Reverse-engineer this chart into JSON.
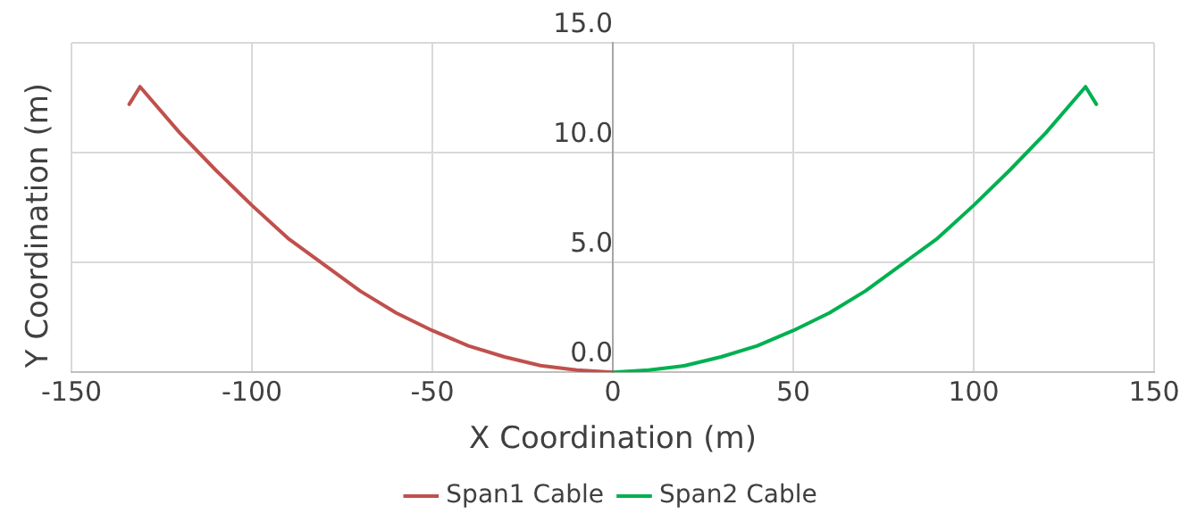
{
  "chart_data": {
    "type": "line",
    "xlabel": "X Coordination (m)",
    "ylabel": "Y Coordination (m)",
    "xlim": [
      -150,
      150
    ],
    "xticks": [
      -150,
      -100,
      -50,
      0,
      50,
      100,
      150
    ],
    "ylim": [
      0,
      15
    ],
    "yticks": [
      {
        "value": 0,
        "label": "0.0"
      },
      {
        "value": 5,
        "label": "5.0"
      },
      {
        "value": 10,
        "label": "10.0"
      },
      {
        "value": 15,
        "label": "15.0"
      }
    ],
    "grid": true,
    "legend": "bottom",
    "marker": "none",
    "line_style": "solid",
    "series": [
      {
        "name": "Span1 Cable",
        "color": "#c0504d",
        "x": [
          -134,
          -131,
          -120,
          -110,
          -100,
          -90,
          -80,
          -70,
          -60,
          -50,
          -40,
          -30,
          -20,
          -10,
          0
        ],
        "values": [
          12.2,
          13.0,
          10.9,
          9.2,
          7.6,
          6.1,
          4.9,
          3.7,
          2.7,
          1.9,
          1.2,
          0.7,
          0.3,
          0.1,
          0
        ]
      },
      {
        "name": "Span2 Cable",
        "color": "#00b050",
        "x": [
          0,
          10,
          20,
          30,
          40,
          50,
          60,
          70,
          80,
          90,
          100,
          110,
          120,
          131,
          134
        ],
        "values": [
          0,
          0.1,
          0.3,
          0.7,
          1.2,
          1.9,
          2.7,
          3.7,
          4.9,
          6.1,
          7.6,
          9.2,
          10.9,
          13.0,
          12.2
        ]
      }
    ]
  }
}
